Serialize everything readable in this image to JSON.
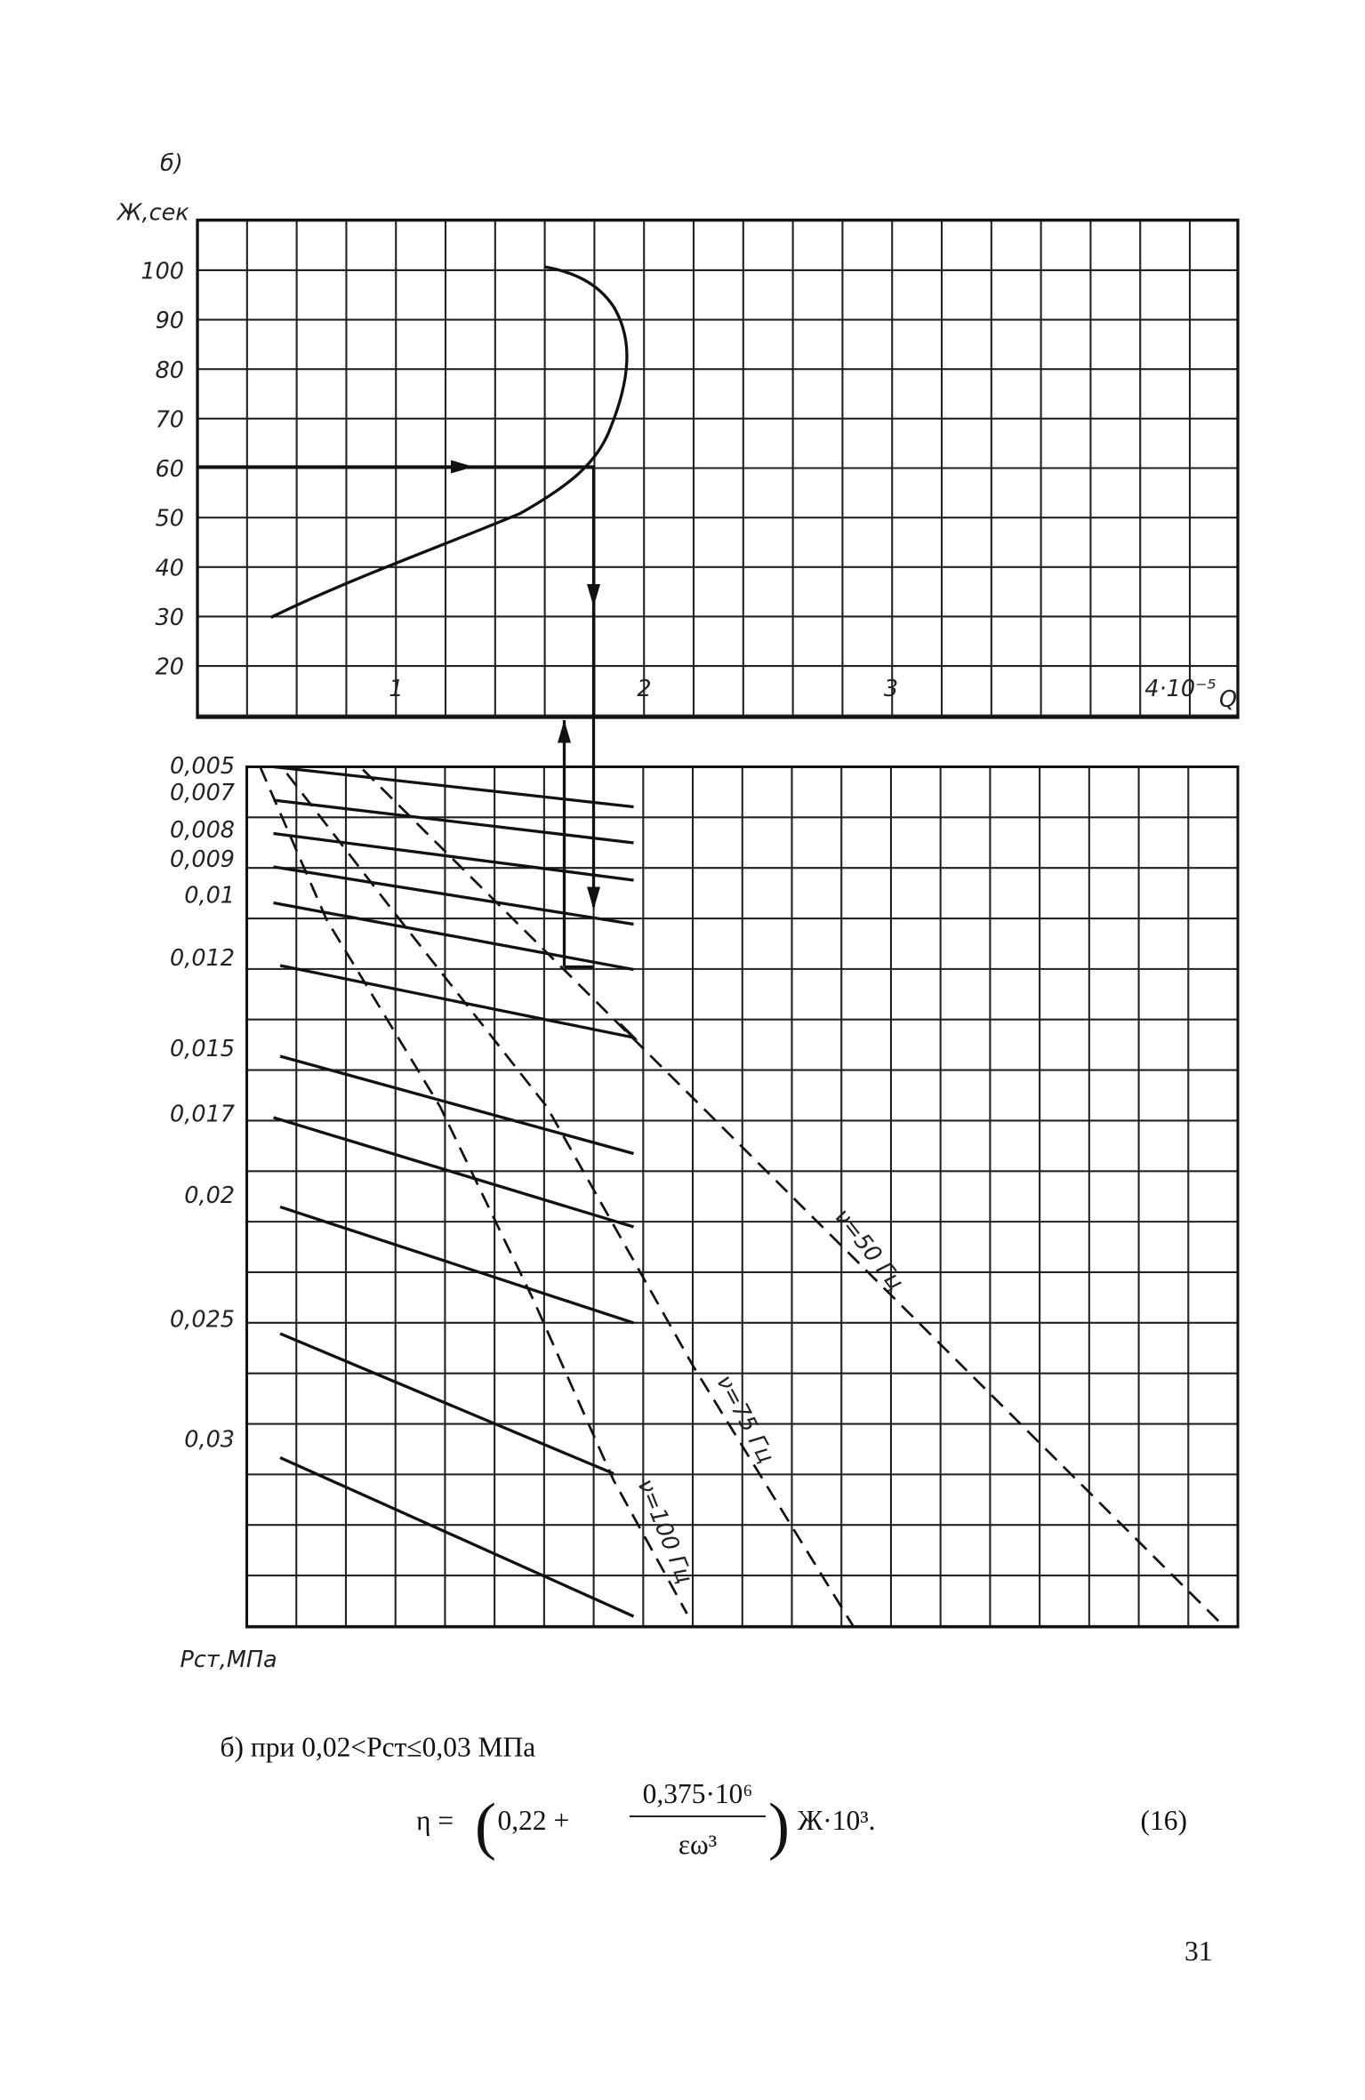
{
  "figure": {
    "label": "б)",
    "top": {
      "y_label": "Ж,сек",
      "y_ticks": [
        "100",
        "90",
        "80",
        "70",
        "60",
        "50",
        "40",
        "30",
        "20"
      ],
      "x_ticks": [
        "1",
        "2",
        "3",
        "4·10⁻⁵"
      ],
      "x_unit": "Q"
    },
    "bottom": {
      "y_ticks": [
        "0,005",
        "0,007",
        "0,008",
        "0,009",
        "0,01",
        "0,012",
        "0,015",
        "0,017",
        "0,02",
        "0,025",
        "0,03"
      ],
      "y_label": "Рст,МПа",
      "curve_labels": [
        "ν=50 Гц",
        "ν=75 Гц",
        "ν=100 Гц"
      ]
    }
  },
  "text": {
    "condition": "б) при 0,02<Рст≤0,03 МПа",
    "formula": {
      "lhs": "η =",
      "term": "0,22 +",
      "numerator": "0,375·10⁶",
      "denominator": "εω³",
      "tail": "Ж·10³.",
      "number": "(16)"
    }
  },
  "page_number": "31"
}
